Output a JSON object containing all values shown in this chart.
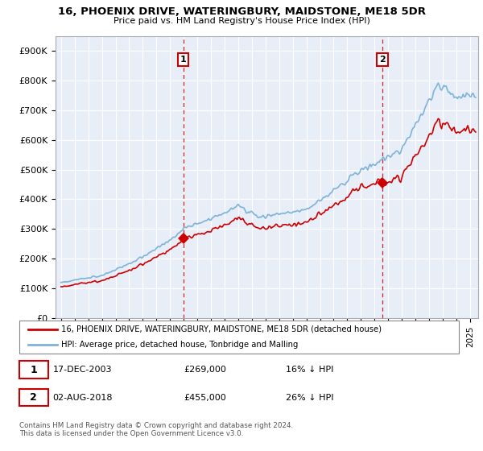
{
  "title1": "16, PHOENIX DRIVE, WATERINGBURY, MAIDSTONE, ME18 5DR",
  "title2": "Price paid vs. HM Land Registry's House Price Index (HPI)",
  "ylabel_ticks": [
    "£0",
    "£100K",
    "£200K",
    "£300K",
    "£400K",
    "£500K",
    "£600K",
    "£700K",
    "£800K",
    "£900K"
  ],
  "ytick_vals": [
    0,
    100000,
    200000,
    300000,
    400000,
    500000,
    600000,
    700000,
    800000,
    900000
  ],
  "ylim": [
    0,
    950000
  ],
  "xlim_start": 1994.6,
  "xlim_end": 2025.6,
  "sale1_x": 2003.96,
  "sale1_y": 269000,
  "sale2_x": 2018.58,
  "sale2_y": 455000,
  "hpi_color": "#7eb3d8",
  "sale_color": "#cc0000",
  "plot_bg": "#e8eef8",
  "grid_color": "#ffffff",
  "legend_text1": "16, PHOENIX DRIVE, WATERINGBURY, MAIDSTONE, ME18 5DR (detached house)",
  "legend_text2": "HPI: Average price, detached house, Tonbridge and Malling",
  "note1_date": "17-DEC-2003",
  "note1_price": "£269,000",
  "note1_hpi": "16% ↓ HPI",
  "note2_date": "02-AUG-2018",
  "note2_price": "£455,000",
  "note2_hpi": "26% ↓ HPI",
  "footer": "Contains HM Land Registry data © Crown copyright and database right 2024.\nThis data is licensed under the Open Government Licence v3.0."
}
